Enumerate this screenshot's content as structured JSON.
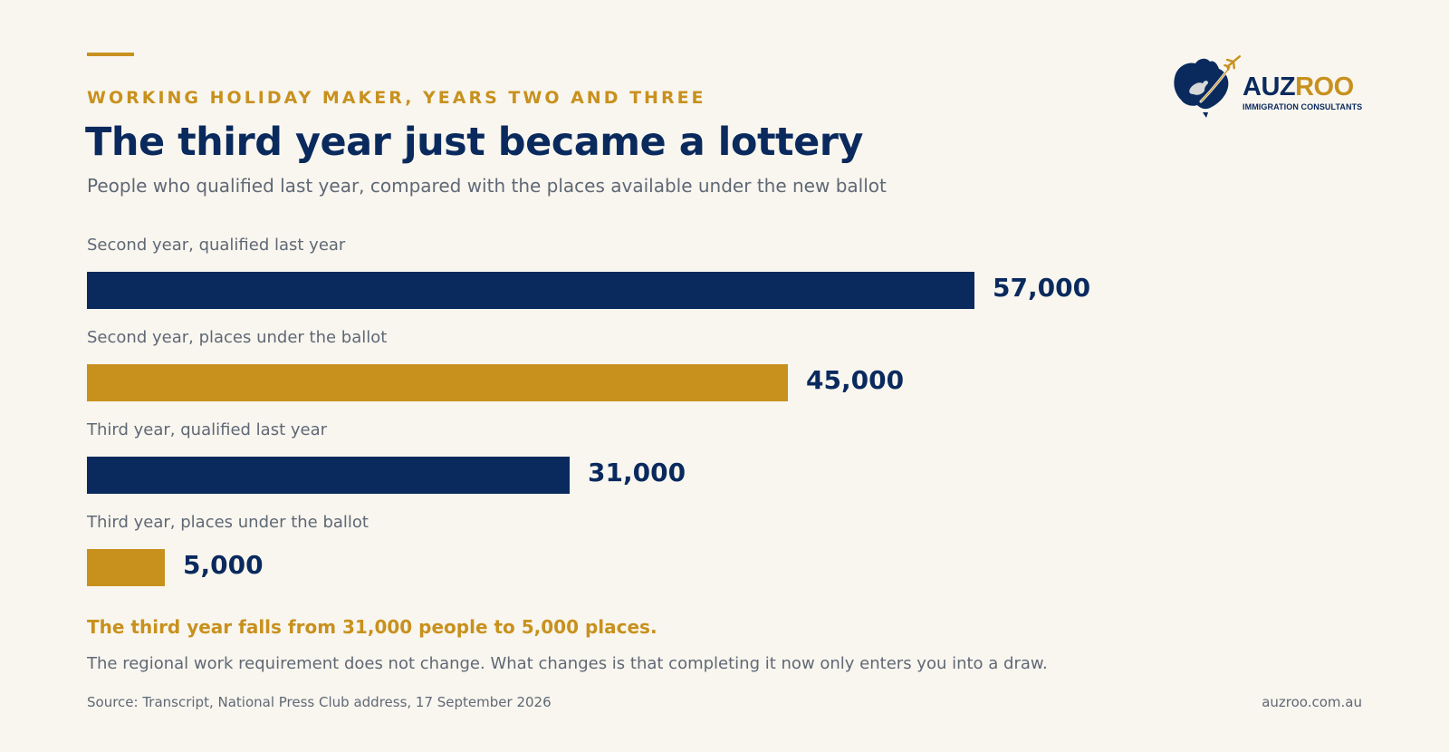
{
  "header": {
    "kicker": "WORKING HOLIDAY MAKER, YEARS TWO AND THREE",
    "title": "The third year just became a lottery",
    "subtitle": "People who qualified last year, compared with the places available under the new ballot"
  },
  "logo": {
    "word_main": "AUZ",
    "word_accent": "ROO",
    "tagline": "IMMIGRATION CONSULTANTS",
    "icons": [
      "australia-map-icon",
      "kangaroo-icon",
      "airplane-icon"
    ]
  },
  "colors": {
    "navy": "#0a2a5e",
    "gold": "#c8911e",
    "background": "#f9f6ef",
    "muted_text": "#5f6875"
  },
  "chart_data": {
    "type": "bar",
    "orientation": "horizontal",
    "categories": [
      "Second year, qualified last year",
      "Second year, places under the ballot",
      "Third year, qualified last year",
      "Third year, places under the ballot"
    ],
    "values": [
      57000,
      45000,
      31000,
      5000
    ],
    "value_labels": [
      "57,000",
      "45,000",
      "31,000",
      "5,000"
    ],
    "bar_colors": [
      "#0a2a5e",
      "#c8911e",
      "#0a2a5e",
      "#c8911e"
    ],
    "xlim": [
      0,
      57000
    ],
    "grid": false,
    "axes_visible": false
  },
  "callout": "The third year falls from 31,000 people to 5,000 places.",
  "note": "The regional work requirement does not change. What changes is that completing it now only enters you into a draw.",
  "footer": {
    "source": "Source: Transcript, National Press Club address, 17 September 2026",
    "site": "auzroo.com.au"
  }
}
